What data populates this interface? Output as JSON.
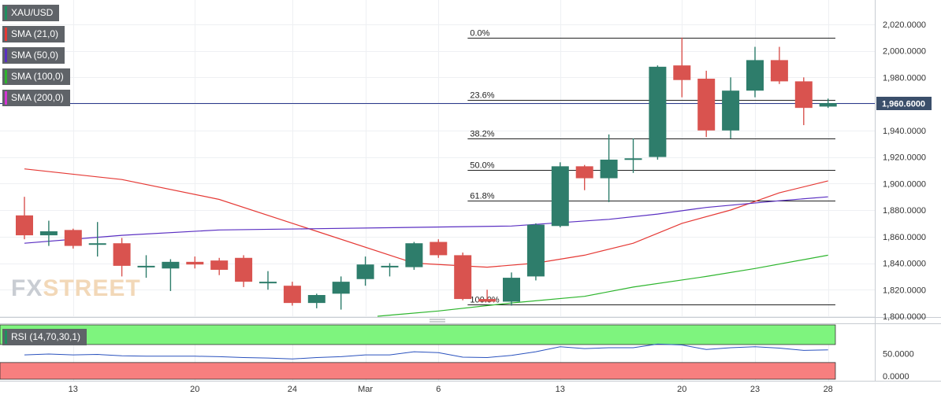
{
  "chart_data": {
    "type": "candlestick",
    "symbol": "XAU/USD",
    "price_axis": {
      "min": 1800,
      "max": 2030,
      "ticks": [
        "2,020.0000",
        "2,000.0000",
        "1,980.0000",
        "1,960.0000",
        "1,940.0000",
        "1,920.0000",
        "1,900.0000",
        "1,880.0000",
        "1,860.0000",
        "1,840.0000",
        "1,820.0000",
        "1,800.0000"
      ],
      "tick_values": [
        2020,
        2000,
        1980,
        1960,
        1940,
        1920,
        1900,
        1880,
        1860,
        1840,
        1820,
        1800
      ],
      "last_price_label": "1,960.6000",
      "last_price": 1960.6
    },
    "x_axis": {
      "labels": [
        {
          "label": "13",
          "index": 2
        },
        {
          "label": "20",
          "index": 7
        },
        {
          "label": "24",
          "index": 11
        },
        {
          "label": "Mar",
          "index": 14
        },
        {
          "label": "6",
          "index": 17
        },
        {
          "label": "13",
          "index": 22
        },
        {
          "label": "20",
          "index": 27
        },
        {
          "label": "23",
          "index": 30
        },
        {
          "label": "28",
          "index": 33
        }
      ]
    },
    "candles": [
      {
        "o": 1876,
        "h": 1890,
        "l": 1858,
        "c": 1861
      },
      {
        "o": 1861,
        "h": 1872,
        "l": 1853,
        "c": 1864
      },
      {
        "o": 1865,
        "h": 1866,
        "l": 1851,
        "c": 1853
      },
      {
        "o": 1855,
        "h": 1871,
        "l": 1845,
        "c": 1855
      },
      {
        "o": 1855,
        "h": 1859,
        "l": 1830,
        "c": 1838
      },
      {
        "o": 1838,
        "h": 1846,
        "l": 1829,
        "c": 1838
      },
      {
        "o": 1836,
        "h": 1843,
        "l": 1819,
        "c": 1841
      },
      {
        "o": 1841,
        "h": 1845,
        "l": 1836,
        "c": 1839
      },
      {
        "o": 1842,
        "h": 1844,
        "l": 1831,
        "c": 1835
      },
      {
        "o": 1844,
        "h": 1846,
        "l": 1822,
        "c": 1826
      },
      {
        "o": 1826,
        "h": 1834,
        "l": 1820,
        "c": 1826
      },
      {
        "o": 1823,
        "h": 1826,
        "l": 1808,
        "c": 1810
      },
      {
        "o": 1810,
        "h": 1817,
        "l": 1806,
        "c": 1816
      },
      {
        "o": 1817,
        "h": 1830,
        "l": 1805,
        "c": 1826
      },
      {
        "o": 1828,
        "h": 1845,
        "l": 1823,
        "c": 1839
      },
      {
        "o": 1838,
        "h": 1840,
        "l": 1830,
        "c": 1838
      },
      {
        "o": 1837,
        "h": 1856,
        "l": 1835,
        "c": 1855
      },
      {
        "o": 1856,
        "h": 1858,
        "l": 1844,
        "c": 1846
      },
      {
        "o": 1846,
        "h": 1848,
        "l": 1812,
        "c": 1813
      },
      {
        "o": 1813,
        "h": 1820,
        "l": 1811,
        "c": 1811
      },
      {
        "o": 1811,
        "h": 1833,
        "l": 1808,
        "c": 1829
      },
      {
        "o": 1830,
        "h": 1870,
        "l": 1827,
        "c": 1869
      },
      {
        "o": 1868,
        "h": 1916,
        "l": 1867,
        "c": 1913
      },
      {
        "o": 1913,
        "h": 1914,
        "l": 1895,
        "c": 1904
      },
      {
        "o": 1904,
        "h": 1937,
        "l": 1886,
        "c": 1918
      },
      {
        "o": 1918,
        "h": 1934,
        "l": 1908,
        "c": 1919
      },
      {
        "o": 1920,
        "h": 1989,
        "l": 1918,
        "c": 1988
      },
      {
        "o": 1989,
        "h": 2010,
        "l": 1965,
        "c": 1978
      },
      {
        "o": 1979,
        "h": 1985,
        "l": 1935,
        "c": 1940
      },
      {
        "o": 1940,
        "h": 1980,
        "l": 1934,
        "c": 1970
      },
      {
        "o": 1970,
        "h": 2003,
        "l": 1965,
        "c": 1993
      },
      {
        "o": 1993,
        "h": 2003,
        "l": 1975,
        "c": 1977
      },
      {
        "o": 1977,
        "h": 1980,
        "l": 1944,
        "c": 1957
      },
      {
        "o": 1958,
        "h": 1964,
        "l": 1957,
        "c": 1960.6
      }
    ],
    "fibonacci": [
      {
        "label": "0.0%",
        "value": 2010
      },
      {
        "label": "23.6%",
        "value": 1963
      },
      {
        "label": "38.2%",
        "value": 1934
      },
      {
        "label": "50.0%",
        "value": 1910
      },
      {
        "label": "61.8%",
        "value": 1887
      },
      {
        "label": "100.0%",
        "value": 1809
      }
    ],
    "indicators": [
      {
        "label": "SMA (21,0)",
        "color": "#e53935",
        "points": [
          [
            0,
            1911
          ],
          [
            4,
            1903
          ],
          [
            8,
            1888
          ],
          [
            12,
            1864
          ],
          [
            16,
            1840
          ],
          [
            19,
            1837
          ],
          [
            21,
            1840
          ],
          [
            23,
            1846
          ],
          [
            25,
            1855
          ],
          [
            27,
            1870
          ],
          [
            29,
            1880
          ],
          [
            31,
            1893
          ],
          [
            33,
            1902
          ]
        ]
      },
      {
        "label": "SMA (50,0)",
        "color": "#5a2fc2",
        "points": [
          [
            0,
            1855
          ],
          [
            4,
            1861
          ],
          [
            8,
            1865
          ],
          [
            12,
            1866
          ],
          [
            16,
            1867
          ],
          [
            20,
            1868
          ],
          [
            24,
            1873
          ],
          [
            26,
            1877
          ],
          [
            28,
            1882
          ],
          [
            31,
            1887
          ],
          [
            33,
            1890
          ]
        ]
      },
      {
        "label": "SMA (100,0)",
        "color": "#2db52d",
        "points": [
          [
            14.5,
            1800
          ],
          [
            17,
            1804
          ],
          [
            20,
            1810
          ],
          [
            23,
            1815
          ],
          [
            25,
            1822
          ],
          [
            28,
            1830
          ],
          [
            30,
            1836
          ],
          [
            33,
            1846
          ]
        ]
      },
      {
        "label": "SMA (200,0)",
        "color": "#d433d4",
        "points": []
      }
    ],
    "rsi": {
      "label": "RSI (14,70,30,1)",
      "ticks": [
        "50.0000",
        "0.0000"
      ],
      "tick_values": [
        50,
        0
      ],
      "overbought": 70,
      "oversold": 30,
      "values": [
        47,
        49,
        47,
        48,
        45,
        44,
        44,
        44,
        43,
        41,
        40,
        38,
        41,
        43,
        47,
        47,
        54,
        52,
        42,
        41,
        46,
        54,
        65,
        61,
        63,
        63,
        71,
        69,
        59,
        63,
        65,
        62,
        57,
        58
      ]
    }
  },
  "watermark": {
    "part1": "FX",
    "part2": "STREET"
  }
}
